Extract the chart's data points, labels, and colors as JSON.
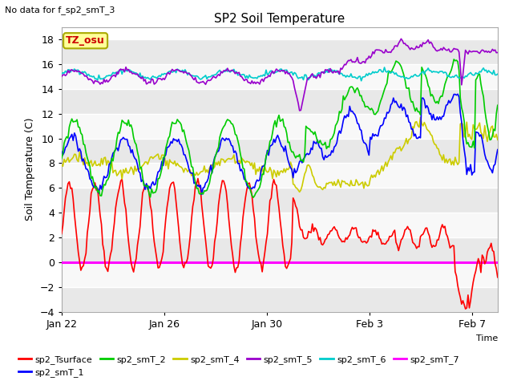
{
  "title": "SP2 Soil Temperature",
  "xlabel": "Time",
  "ylabel": "Soil Temperature (C)",
  "note": "No data for f_sp2_smT_3",
  "tz_label": "TZ_osu",
  "ylim": [
    -4,
    19
  ],
  "yticks": [
    -4,
    -2,
    0,
    2,
    4,
    6,
    8,
    10,
    12,
    14,
    16,
    18
  ],
  "xtick_labels": [
    "Jan 22",
    "Jan 26",
    "Jan 30",
    "Feb 3",
    "Feb 7"
  ],
  "xtick_positions": [
    0,
    4,
    8,
    12,
    16
  ],
  "colors": {
    "sp2_Tsurface": "#ff0000",
    "sp2_smT_1": "#0000ff",
    "sp2_smT_2": "#00cc00",
    "sp2_smT_4": "#cccc00",
    "sp2_smT_5": "#9900cc",
    "sp2_smT_6": "#00cccc",
    "sp2_smT_7": "#ff00ff"
  },
  "bg_dark": "#e0e0e0",
  "bg_light": "#f0f0f0",
  "grid_line_color": "#ffffff"
}
